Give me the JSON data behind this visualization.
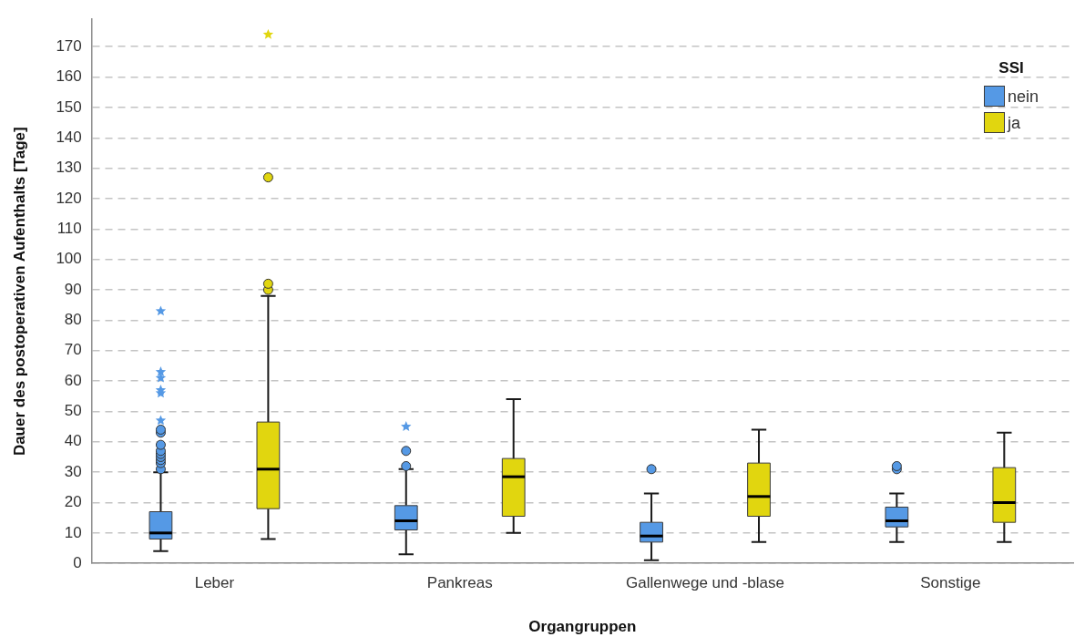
{
  "chart_data": {
    "type": "box",
    "xlabel": "Organgruppen",
    "ylabel": "Dauer des postoperativen Aufenthalts [Tage]",
    "legend_title": "SSI",
    "categories": [
      "Leber",
      "Pankreas",
      "Gallenwege und -blase",
      "Sonstige"
    ],
    "series": [
      {
        "name": "nein",
        "color": "#5599e5",
        "boxes": [
          {
            "low": 4,
            "q1": 8,
            "median": 10,
            "q3": 17,
            "high": 30,
            "outliers": [
              31,
              33,
              34,
              35,
              36,
              37,
              39,
              43,
              44,
              47,
              56,
              57,
              61,
              63,
              83
            ]
          },
          {
            "low": 3,
            "q1": 11,
            "median": 14,
            "q3": 19,
            "high": 31,
            "outliers": [
              32,
              37,
              45
            ]
          },
          {
            "low": 1,
            "q1": 7,
            "median": 9,
            "q3": 13.5,
            "high": 23,
            "outliers": [
              31
            ]
          },
          {
            "low": 7,
            "q1": 12,
            "median": 14,
            "q3": 18.5,
            "high": 23,
            "outliers": [
              31,
              32
            ]
          }
        ]
      },
      {
        "name": "ja",
        "color": "#e1d60f",
        "boxes": [
          {
            "low": 8,
            "q1": 18,
            "median": 31,
            "q3": 46.5,
            "high": 88,
            "outliers": [
              90,
              92,
              127,
              174
            ]
          },
          {
            "low": 10,
            "q1": 15.5,
            "median": 28.5,
            "q3": 34.5,
            "high": 54
          },
          {
            "low": 7,
            "q1": 15.5,
            "median": 22,
            "q3": 33,
            "high": 44
          },
          {
            "low": 7,
            "q1": 13.5,
            "median": 20,
            "q3": 31.5,
            "high": 43
          }
        ]
      }
    ],
    "ylim": [
      0,
      179
    ],
    "yticks": [
      0,
      10,
      20,
      30,
      40,
      50,
      60,
      70,
      80,
      90,
      100,
      110,
      120,
      130,
      140,
      150,
      160,
      170
    ],
    "grid": "y",
    "legend": "top right"
  }
}
